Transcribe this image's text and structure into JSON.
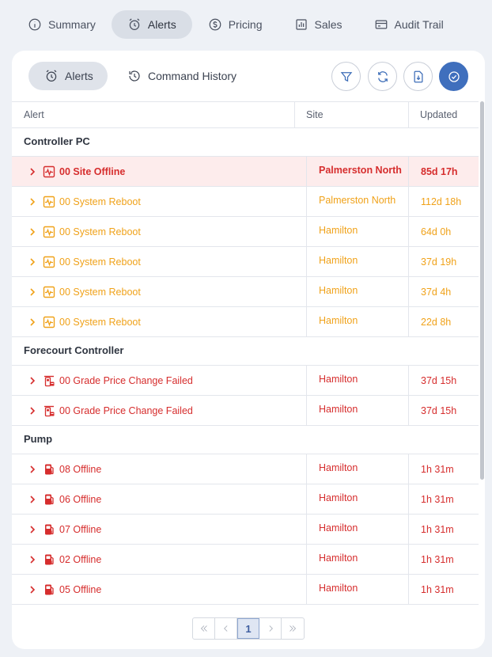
{
  "top_tabs": [
    {
      "label": "Summary",
      "icon": "info-icon"
    },
    {
      "label": "Alerts",
      "icon": "alarm-clock-icon",
      "active": true
    },
    {
      "label": "Pricing",
      "icon": "dollar-circle-icon"
    },
    {
      "label": "Sales",
      "icon": "bar-chart-icon"
    },
    {
      "label": "Audit Trail",
      "icon": "credit-card-icon"
    }
  ],
  "sub_tabs": [
    {
      "label": "Alerts",
      "icon": "alarm-clock-icon",
      "active": true
    },
    {
      "label": "Command History",
      "icon": "history-icon"
    }
  ],
  "actions": [
    "filter-icon",
    "refresh-icon",
    "download-file-icon",
    "check-circle-icon"
  ],
  "table": {
    "headers": {
      "alert": "Alert",
      "site": "Site",
      "updated": "Updated"
    },
    "groups": [
      {
        "name": "Controller PC",
        "rows": [
          {
            "alert": "00 Site Offline",
            "site": "Palmerston North",
            "updated": "85d 17h",
            "severity": "red",
            "icon": "pulse-monitor-icon",
            "highlight": true
          },
          {
            "alert": "00 System Reboot",
            "site": "Palmerston North",
            "updated": "112d 18h",
            "severity": "orange",
            "icon": "pulse-monitor-icon"
          },
          {
            "alert": "00 System Reboot",
            "site": "Hamilton",
            "updated": "64d 0h",
            "severity": "orange",
            "icon": "pulse-monitor-icon"
          },
          {
            "alert": "00 System Reboot",
            "site": "Hamilton",
            "updated": "37d 19h",
            "severity": "orange",
            "icon": "pulse-monitor-icon"
          },
          {
            "alert": "00 System Reboot",
            "site": "Hamilton",
            "updated": "37d 4h",
            "severity": "orange",
            "icon": "pulse-monitor-icon"
          },
          {
            "alert": "00 System Reboot",
            "site": "Hamilton",
            "updated": "22d 8h",
            "severity": "orange",
            "icon": "pulse-monitor-icon"
          }
        ]
      },
      {
        "name": "Forecourt Controller",
        "rows": [
          {
            "alert": "00 Grade Price Change Failed",
            "site": "Hamilton",
            "updated": "37d 15h",
            "severity": "red",
            "icon": "forecourt-controller-icon"
          },
          {
            "alert": "00 Grade Price Change Failed",
            "site": "Hamilton",
            "updated": "37d 15h",
            "severity": "red",
            "icon": "forecourt-controller-icon"
          }
        ]
      },
      {
        "name": "Pump",
        "rows": [
          {
            "alert": "08 Offline",
            "site": "Hamilton",
            "updated": "1h 31m",
            "severity": "red",
            "icon": "fuel-pump-icon"
          },
          {
            "alert": "06 Offline",
            "site": "Hamilton",
            "updated": "1h 31m",
            "severity": "red",
            "icon": "fuel-pump-icon"
          },
          {
            "alert": "07 Offline",
            "site": "Hamilton",
            "updated": "1h 31m",
            "severity": "red",
            "icon": "fuel-pump-icon"
          },
          {
            "alert": "02 Offline",
            "site": "Hamilton",
            "updated": "1h 31m",
            "severity": "red",
            "icon": "fuel-pump-icon"
          },
          {
            "alert": "05 Offline",
            "site": "Hamilton",
            "updated": "1h 31m",
            "severity": "red",
            "icon": "fuel-pump-icon"
          }
        ]
      }
    ]
  },
  "pagination": {
    "current": "1"
  },
  "colors": {
    "red": "#d62d2d",
    "orange": "#f0a21a",
    "accent": "#3f6fbd"
  }
}
